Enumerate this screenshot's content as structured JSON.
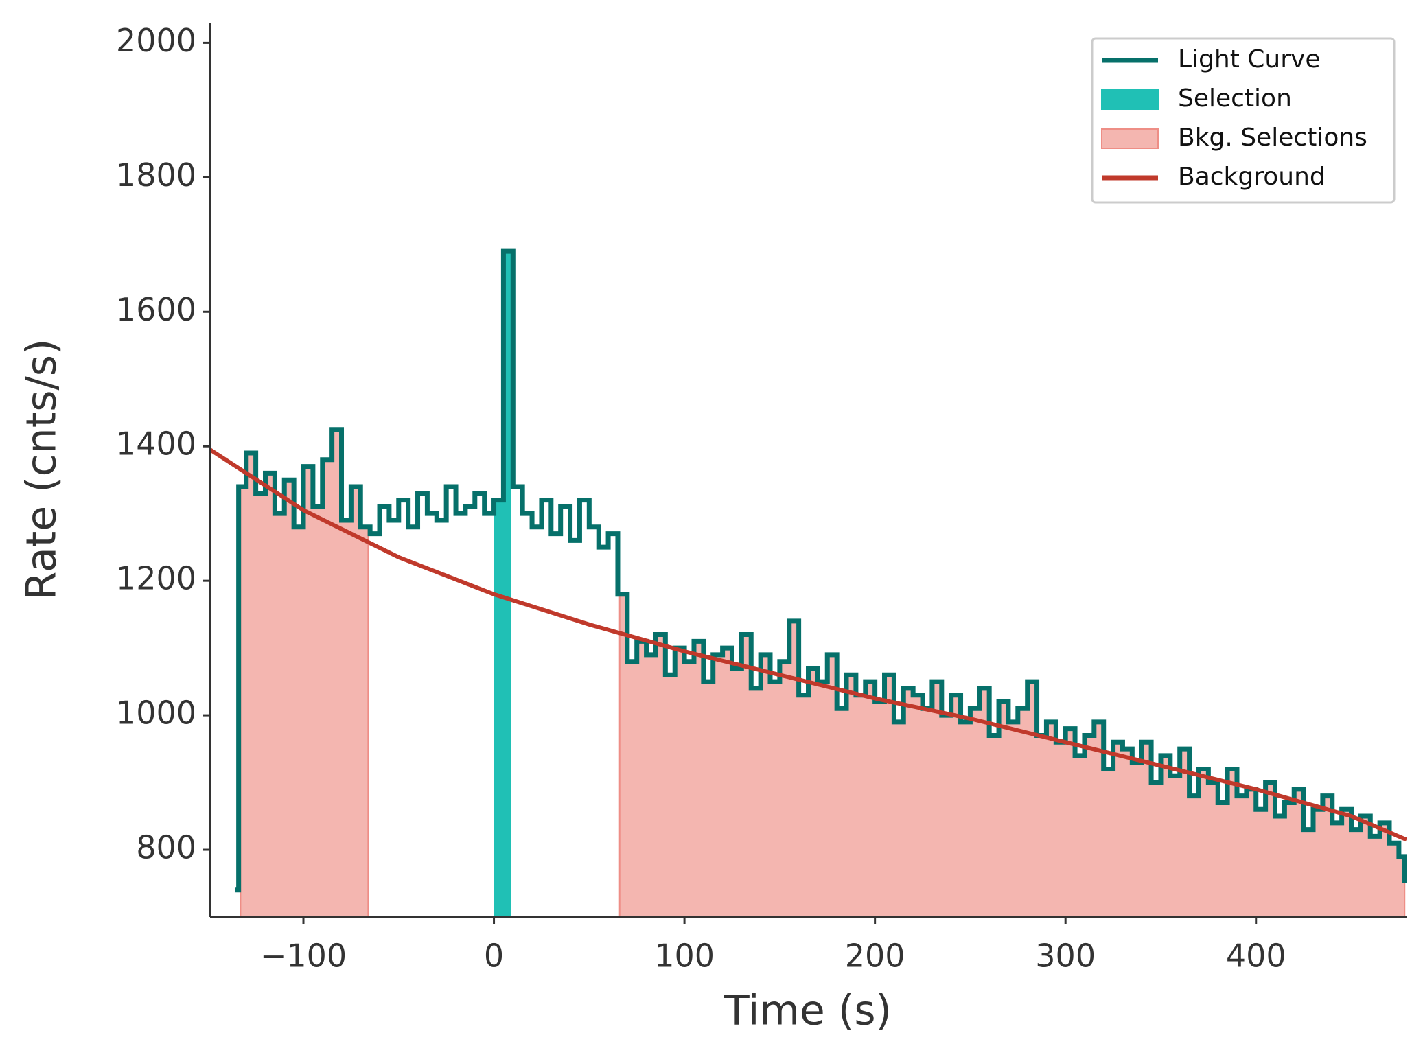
{
  "chart_data": {
    "type": "line",
    "xlabel": "Time (s)",
    "ylabel": "Rate (cnts/s)",
    "xlim": [
      -149,
      479
    ],
    "ylim": [
      700,
      2030
    ],
    "xticks": [
      {
        "value": -100,
        "label": "−100"
      },
      0,
      100,
      200,
      300,
      400
    ],
    "yticks": [
      800,
      1000,
      1200,
      1400,
      1600,
      1800,
      2000
    ],
    "legend": "upper right",
    "series": [
      {
        "name": "Light Curve",
        "color": "#06706a",
        "x": [
          -136,
          -134,
          -130,
          -125,
          -120,
          -115,
          -110,
          -105,
          -100,
          -95,
          -90,
          -85,
          -80,
          -75,
          -70,
          -65,
          -60,
          -55,
          -50,
          -45,
          -40,
          -35,
          -30,
          -25,
          -20,
          -15,
          -10,
          -5,
          0,
          5,
          10,
          15,
          20,
          25,
          30,
          35,
          40,
          45,
          50,
          55,
          60,
          65,
          70,
          75,
          80,
          85,
          90,
          95,
          100,
          105,
          110,
          115,
          120,
          125,
          130,
          135,
          140,
          145,
          150,
          155,
          160,
          165,
          170,
          175,
          180,
          185,
          190,
          195,
          200,
          205,
          210,
          215,
          220,
          225,
          230,
          235,
          240,
          245,
          250,
          255,
          260,
          265,
          270,
          275,
          280,
          285,
          290,
          295,
          300,
          305,
          310,
          315,
          320,
          325,
          330,
          335,
          340,
          345,
          350,
          355,
          360,
          365,
          370,
          375,
          380,
          385,
          390,
          395,
          400,
          405,
          410,
          415,
          420,
          425,
          430,
          435,
          440,
          445,
          450,
          455,
          460,
          465,
          470,
          475,
          478
        ],
        "values": [
          740,
          1340,
          1390,
          1330,
          1360,
          1300,
          1350,
          1280,
          1370,
          1310,
          1380,
          1425,
          1290,
          1340,
          1280,
          1270,
          1310,
          1290,
          1320,
          1280,
          1330,
          1300,
          1290,
          1340,
          1300,
          1310,
          1330,
          1300,
          1320,
          1690,
          1340,
          1300,
          1280,
          1320,
          1270,
          1310,
          1260,
          1320,
          1280,
          1250,
          1270,
          1180,
          1080,
          1110,
          1090,
          1120,
          1060,
          1100,
          1080,
          1110,
          1050,
          1090,
          1100,
          1070,
          1120,
          1040,
          1090,
          1050,
          1080,
          1140,
          1030,
          1070,
          1050,
          1090,
          1010,
          1060,
          1030,
          1050,
          1020,
          1060,
          990,
          1040,
          1030,
          1010,
          1050,
          1000,
          1030,
          990,
          1010,
          1040,
          970,
          1020,
          990,
          1010,
          1050,
          970,
          990,
          960,
          980,
          940,
          970,
          990,
          920,
          960,
          950,
          930,
          960,
          900,
          940,
          910,
          950,
          880,
          920,
          900,
          870,
          920,
          880,
          890,
          860,
          900,
          850,
          870,
          890,
          830,
          860,
          880,
          840,
          860,
          830,
          850,
          820,
          840,
          810,
          790,
          750
        ]
      },
      {
        "name": "Background",
        "color": "#c0392b",
        "x": [
          -149,
          -100,
          -50,
          0,
          50,
          100,
          150,
          200,
          250,
          300,
          350,
          400,
          450,
          479
        ],
        "values": [
          1395,
          1305,
          1235,
          1180,
          1135,
          1095,
          1060,
          1025,
          995,
          960,
          925,
          890,
          850,
          815
        ]
      }
    ],
    "selection": {
      "name": "Selection",
      "color": "#20c0b5",
      "range": [
        0,
        9
      ]
    },
    "bkg_selections": {
      "name": "Bkg. Selections",
      "color": "#f4b6b0",
      "edge": "#ee8e86",
      "ranges": [
        [
          -133,
          -66
        ],
        [
          66,
          478
        ]
      ]
    }
  }
}
